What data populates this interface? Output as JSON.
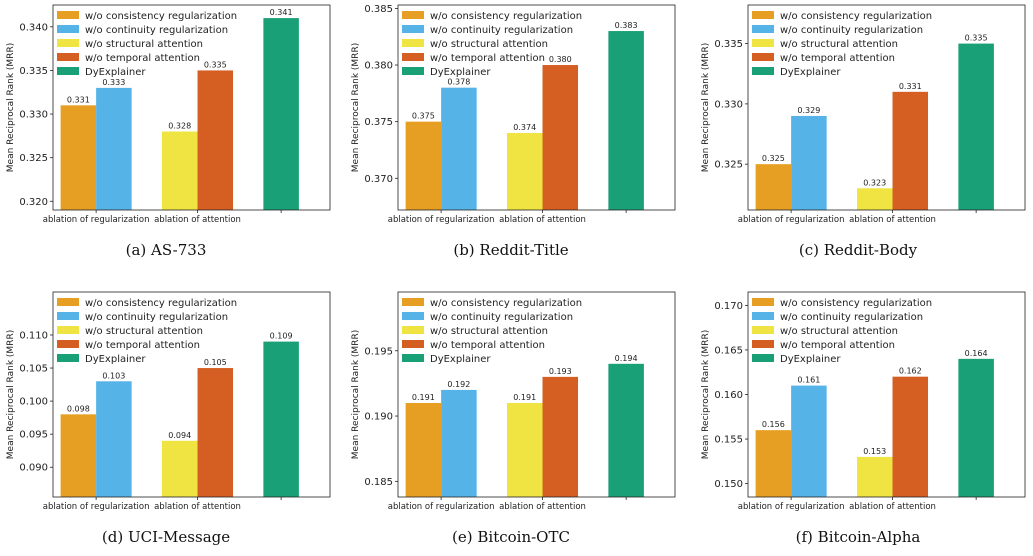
{
  "legend_labels": [
    "w/o consistency regularization",
    "w/o continuity regularization",
    "w/o structural attention",
    "w/o temporal attention",
    "DyExplainer"
  ],
  "series_colors": [
    "#E69F22",
    "#56B3E8",
    "#EFE442",
    "#D55E22",
    "#1AA077"
  ],
  "chart_data": [
    {
      "type": "bar",
      "caption": "(a)  AS-733",
      "ylabel": "Mean Reciprocal Rank (MRR)",
      "ylim": [
        0.319,
        0.3425
      ],
      "yticks": [
        "0.320",
        "0.325",
        "0.330",
        "0.335",
        "0.340"
      ],
      "categories": [
        "ablation of regularization",
        "ablation of attention",
        ""
      ],
      "values": [
        0.331,
        0.333,
        0.328,
        0.335,
        0.341
      ],
      "labels": [
        "0.331",
        "0.333",
        "0.328",
        "0.335",
        "0.341"
      ]
    },
    {
      "type": "bar",
      "caption": "(b)  Reddit-Title",
      "ylabel": "Mean Reciprocal Rank (MRR)",
      "ylim": [
        0.3672,
        0.3853
      ],
      "yticks": [
        "0.370",
        "0.375",
        "0.380",
        "0.385"
      ],
      "categories": [
        "ablation of regularization",
        "ablation of attention",
        ""
      ],
      "values": [
        0.375,
        0.378,
        0.374,
        0.38,
        0.383
      ],
      "labels": [
        "0.375",
        "0.378",
        "0.374",
        "0.380",
        "0.383"
      ]
    },
    {
      "type": "bar",
      "caption": "(c)  Reddit-Body",
      "ylabel": "Mean Reciprocal Rank (MRR)",
      "ylim": [
        0.3212,
        0.3382
      ],
      "yticks": [
        "0.325",
        "0.330",
        "0.335"
      ],
      "categories": [
        "ablation of regularization",
        "ablation of attention",
        ""
      ],
      "values": [
        0.325,
        0.329,
        0.323,
        0.331,
        0.335
      ],
      "labels": [
        "0.325",
        "0.329",
        "0.323",
        "0.331",
        "0.335"
      ]
    },
    {
      "type": "bar",
      "caption": "(d)  UCI-Message",
      "ylabel": "Mean Reciprocal Rank (MRR)",
      "ylim": [
        0.0855,
        0.1165
      ],
      "yticks": [
        "0.090",
        "0.095",
        "0.100",
        "0.105",
        "0.110"
      ],
      "categories": [
        "ablation of regularization",
        "ablation of attention",
        ""
      ],
      "values": [
        0.098,
        0.103,
        0.094,
        0.105,
        0.109
      ],
      "labels": [
        "0.098",
        "0.103",
        "0.094",
        "0.105",
        "0.109"
      ]
    },
    {
      "type": "bar",
      "caption": "(e)  Bitcoin-OTC",
      "ylabel": "Mean Reciprocal Rank (MRR)",
      "ylim": [
        0.1838,
        0.1995
      ],
      "yticks": [
        "0.185",
        "0.190",
        "0.195"
      ],
      "categories": [
        "ablation of regularization",
        "ablation of attention",
        ""
      ],
      "values": [
        0.191,
        0.192,
        0.191,
        0.193,
        0.194
      ],
      "labels": [
        "0.191",
        "0.192",
        "0.191",
        "0.193",
        "0.194"
      ]
    },
    {
      "type": "bar",
      "caption": "(f)  Bitcoin-Alpha",
      "ylabel": "Mean Reciprocal Rank (MRR)",
      "ylim": [
        0.1485,
        0.1715
      ],
      "yticks": [
        "0.150",
        "0.155",
        "0.160",
        "0.165",
        "0.170"
      ],
      "categories": [
        "ablation of regularization",
        "ablation of attention",
        ""
      ],
      "values": [
        0.156,
        0.161,
        0.153,
        0.162,
        0.164
      ],
      "labels": [
        "0.156",
        "0.161",
        "0.153",
        "0.162",
        "0.164"
      ]
    }
  ]
}
